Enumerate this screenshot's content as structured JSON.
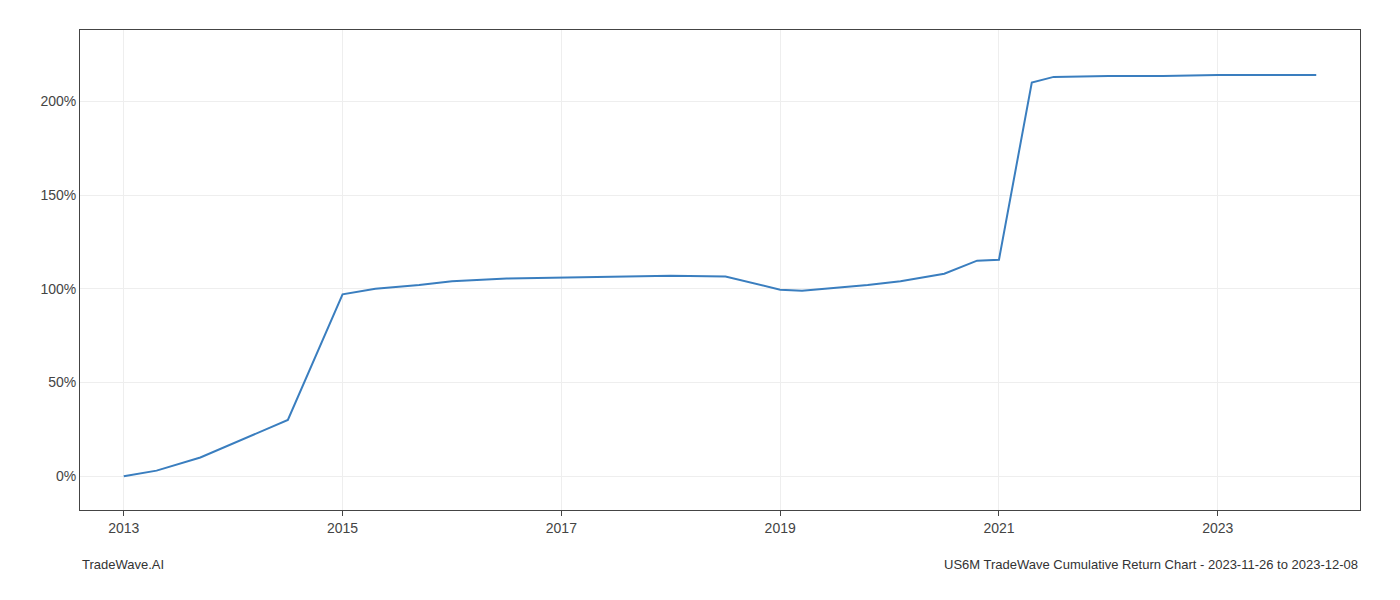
{
  "chart_data": {
    "type": "line",
    "x": [
      2013.0,
      2013.3,
      2013.7,
      2014.1,
      2014.5,
      2015.0,
      2015.3,
      2015.7,
      2016.0,
      2016.5,
      2017.0,
      2017.3,
      2017.7,
      2018.0,
      2018.5,
      2019.0,
      2019.2,
      2019.5,
      2019.8,
      2020.1,
      2020.5,
      2020.8,
      2021.0,
      2021.3,
      2021.5,
      2022.0,
      2022.5,
      2023.0,
      2023.5,
      2023.9
    ],
    "values": [
      0.0,
      3.0,
      10.0,
      20.0,
      30.0,
      97.0,
      100.0,
      102.0,
      104.0,
      105.5,
      106.0,
      106.5,
      107.0,
      107.0,
      106.5,
      99.5,
      99.0,
      100.5,
      102.0,
      104.0,
      108.0,
      115.0,
      115.5,
      210.0,
      213.0,
      213.5,
      213.5,
      214.0,
      214.0,
      214.0
    ],
    "color": "#3a7ebf",
    "xlim": [
      2012.6,
      2024.3
    ],
    "xticks": [
      2013,
      2015,
      2017,
      2019,
      2021,
      2023
    ],
    "ylim": [
      -18,
      238
    ],
    "yticks": [
      {
        "value": 0,
        "label": "0%"
      },
      {
        "value": 50,
        "label": "50%"
      },
      {
        "value": 100,
        "label": "100%"
      },
      {
        "value": 150,
        "label": "150%"
      },
      {
        "value": 200,
        "label": "200%"
      }
    ],
    "grid": true,
    "annotations": [
      "TradeWave.AI",
      "US6M TradeWave Cumulative Return Chart - 2023-11-26 to 2023-12-08"
    ]
  }
}
